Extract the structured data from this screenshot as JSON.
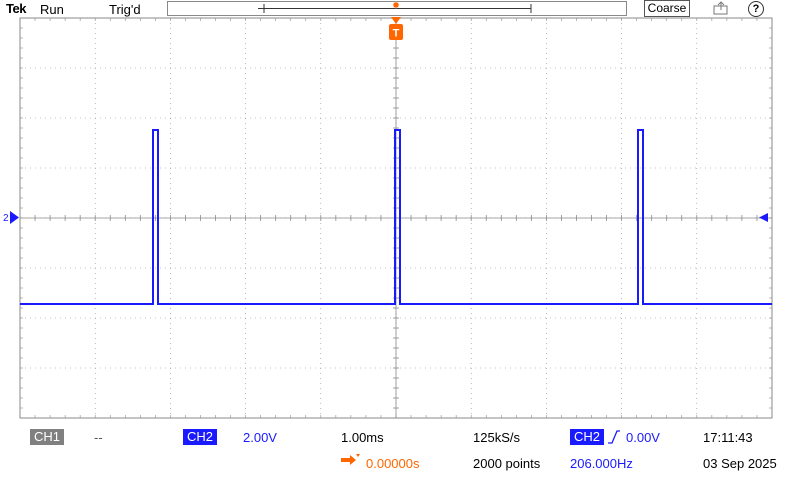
{
  "header": {
    "brand": "Tek",
    "acq_state": "Run",
    "trigger_state": "Trig'd",
    "knob_mode": "Coarse",
    "help_glyph": "?"
  },
  "trigger_marker": {
    "label": "T",
    "color": "#ff6600"
  },
  "channel2_marker": {
    "label": "2",
    "color": "#1a1aff"
  },
  "readouts": {
    "ch1_label": "CH1",
    "ch1_value": "--",
    "ch2_label": "CH2",
    "ch2_scale": "2.00V",
    "timebase": "1.00ms",
    "sample_rate": "125kS/s",
    "record_length": "2000 points",
    "trig_source": "CH2",
    "trig_level": "0.00V",
    "trig_position": "0.00000s",
    "frequency": "206.000Hz",
    "time": "17:11:43",
    "date": "03 Sep 2025"
  },
  "colors": {
    "ch2": "#1a1aff",
    "trigger": "#ff6600",
    "grid": "#8a8a8a",
    "ch1_box": "#808080"
  }
}
